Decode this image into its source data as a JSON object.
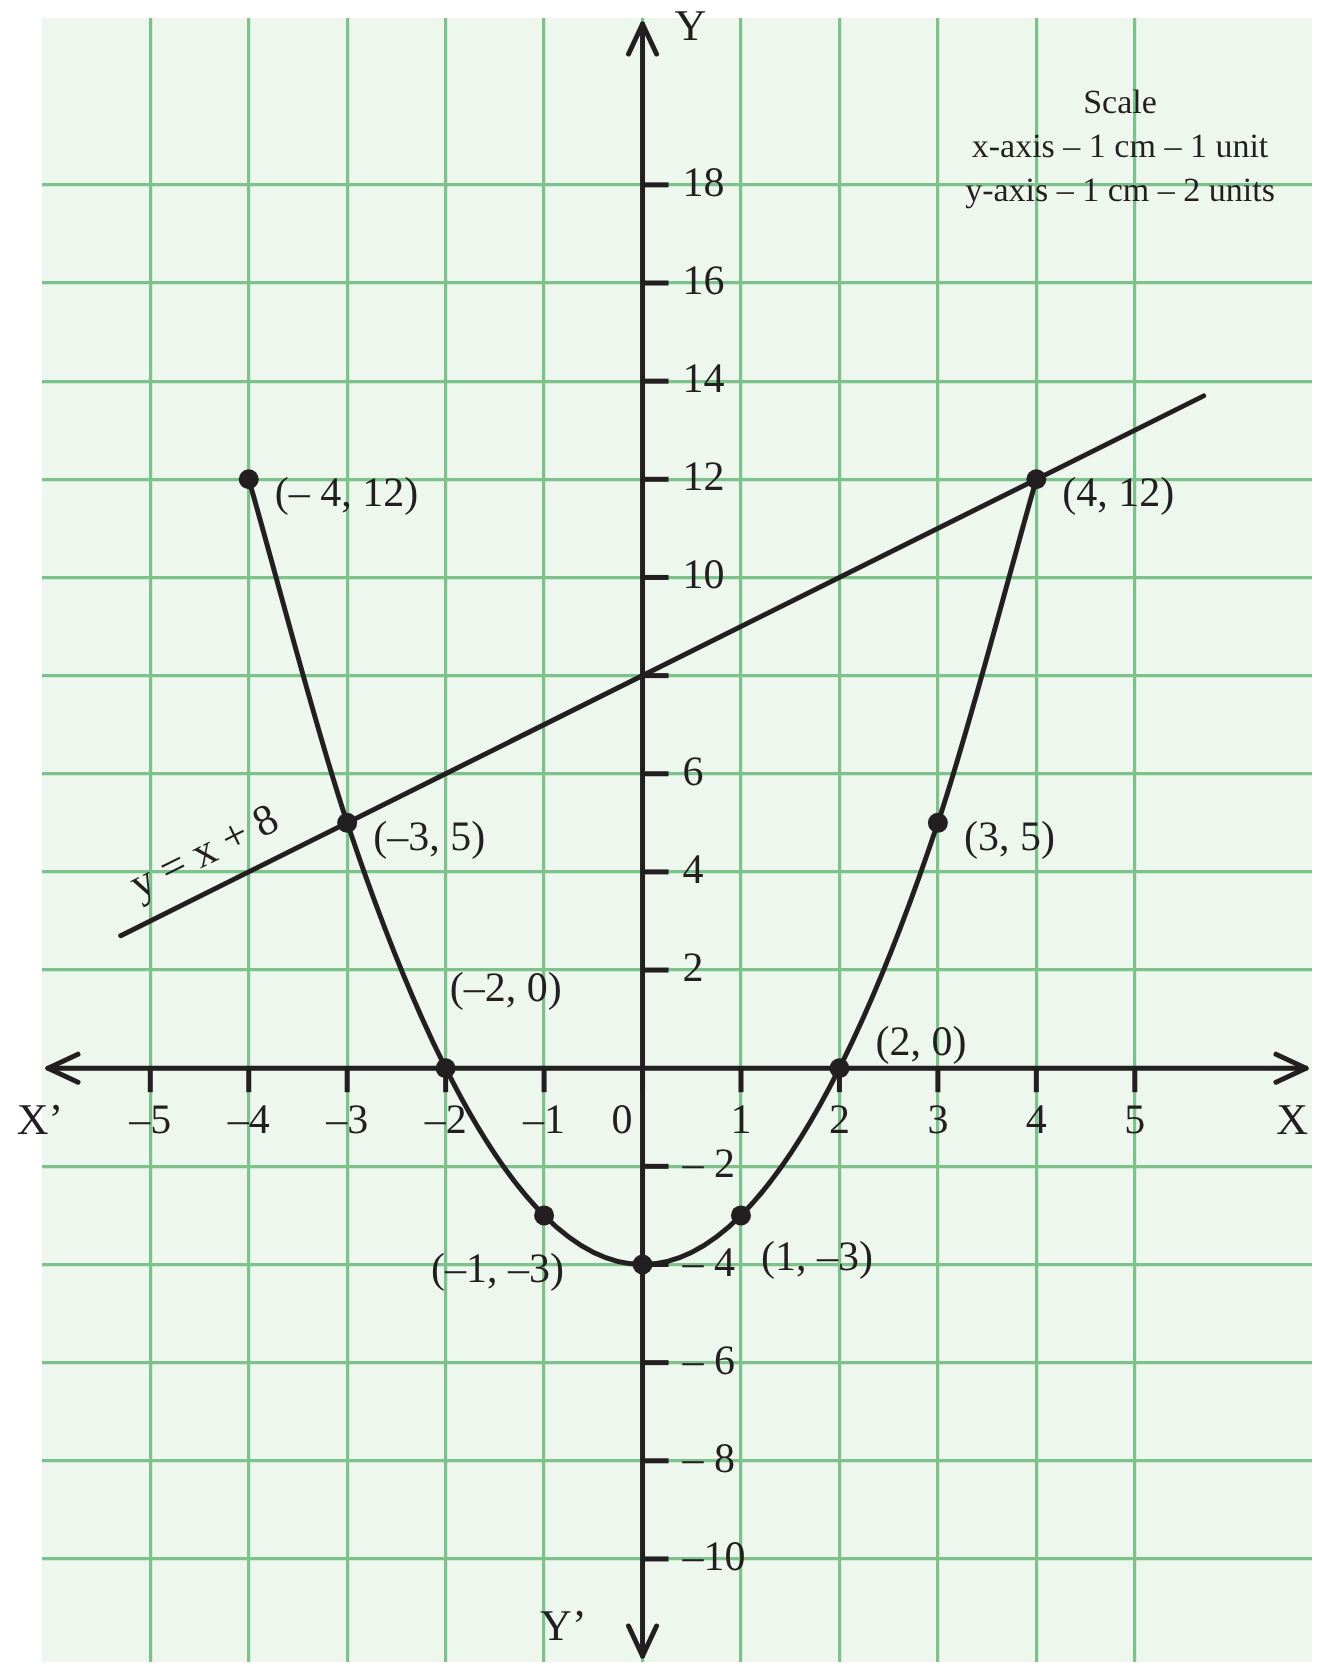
{
  "chart_data": {
    "type": "line",
    "xlabel": "X",
    "ylabel": "Y",
    "xlim": [
      -6.1,
      6.8
    ],
    "ylim": [
      -12.1,
      21.4
    ],
    "xticks": [
      {
        "value": -5,
        "label": "–5"
      },
      {
        "value": -4,
        "label": "–4"
      },
      {
        "value": -3,
        "label": "–3"
      },
      {
        "value": -2,
        "label": "–2"
      },
      {
        "value": -1,
        "label": "–1"
      },
      0,
      1,
      2,
      3,
      4,
      5
    ],
    "yticks": [
      {
        "value": -10,
        "label": "–10"
      },
      {
        "value": -8,
        "label": "– 8"
      },
      {
        "value": -6,
        "label": "– 6"
      },
      {
        "value": -4,
        "label": "– 4"
      },
      {
        "value": -2,
        "label": "– 2"
      },
      2,
      4,
      6,
      {
        "value": 8,
        "label": null
      },
      10,
      12,
      14,
      16,
      18
    ],
    "grid": true,
    "series": [
      {
        "color": "#231f20",
        "marker": "circle",
        "x": [
          -4,
          -3,
          -2,
          -1,
          0,
          1,
          2,
          3,
          4
        ],
        "values": [
          12,
          5,
          0,
          -3,
          -4,
          -3,
          0,
          5,
          12
        ]
      },
      {
        "name": "y = x + 8",
        "color": "#231f20",
        "marker": "none",
        "x": [
          -5.3,
          5.7
        ],
        "values": [
          2.7,
          13.7
        ]
      }
    ],
    "annotations": [
      {
        "text": "(– 4, 12)",
        "x": -4,
        "y": 12
      },
      {
        "text": "(4, 12)",
        "x": 4,
        "y": 12
      },
      {
        "text": "(–3, 5)",
        "x": -3,
        "y": 5
      },
      {
        "text": "(3, 5)",
        "x": 3,
        "y": 5
      },
      {
        "text": "(–2, 0)",
        "x": -2,
        "y": 0
      },
      {
        "text": "(2, 0)",
        "x": 2,
        "y": 0
      },
      {
        "text": "(–1, –3)",
        "x": -1,
        "y": -3
      },
      {
        "text": "(1, –3)",
        "x": 1,
        "y": -3
      },
      "X’",
      "Y’",
      "Scale",
      "x-axis – 1 cm – 1 unit",
      "y-axis – 1 cm – 2 units"
    ]
  }
}
